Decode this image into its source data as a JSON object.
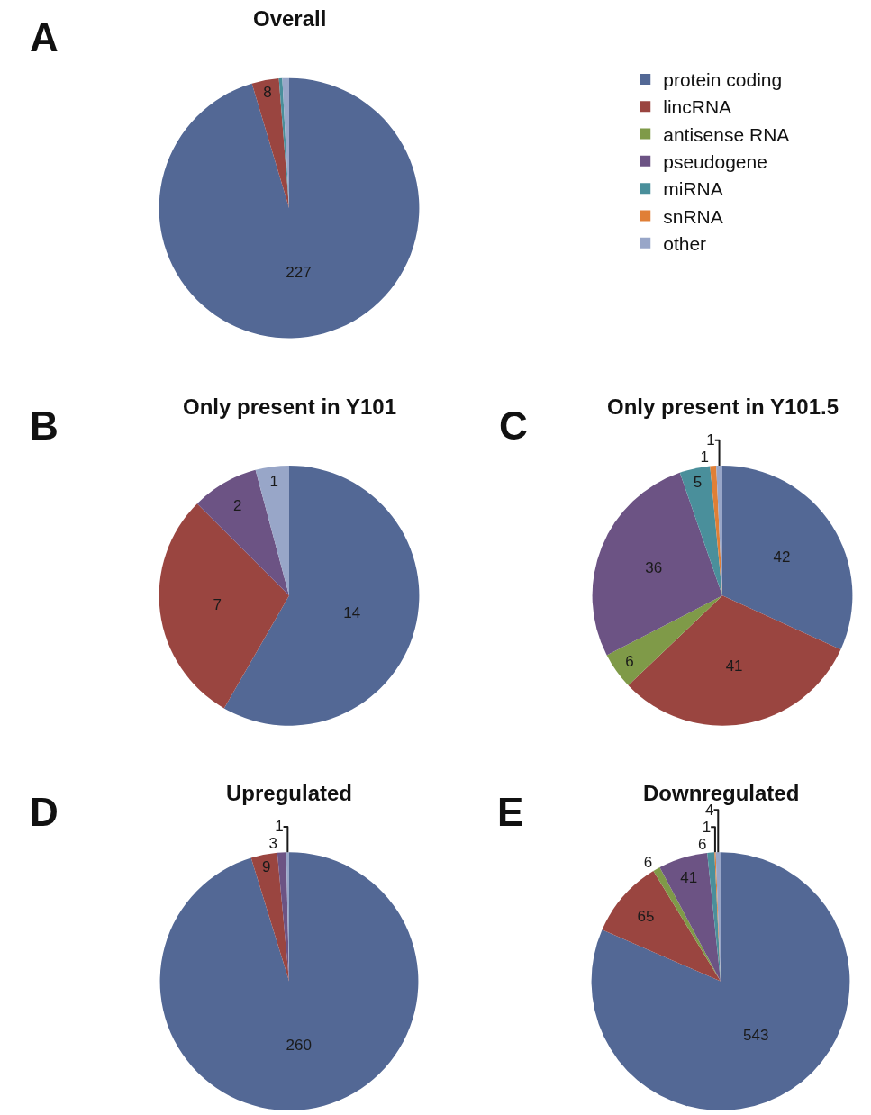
{
  "chart_data": [
    {
      "type": "pie",
      "title": "Overall",
      "annotations": [
        "A"
      ],
      "legend": "right",
      "categories": [
        "protein coding",
        "lincRNA",
        "antisense RNA",
        "pseudogene",
        "miRNA",
        "snRNA",
        "other"
      ],
      "values": [
        227,
        8,
        0,
        0,
        1,
        0,
        2
      ],
      "value_labels": [
        "227",
        "8",
        null,
        null,
        null,
        null,
        null
      ],
      "colors": [
        "#536895",
        "#9a4540",
        "#7f9a48",
        "#6c5384",
        "#4a8f9b",
        "#e07f36",
        "#98a6c8"
      ]
    },
    {
      "type": "pie",
      "title": "Only present in Y101",
      "annotations": [
        "B"
      ],
      "categories": [
        null,
        null,
        null,
        null
      ],
      "values": [
        14,
        7,
        2,
        1
      ],
      "colors": [
        "#536895",
        "#9a4540",
        "#6c5384",
        "#98a6c8"
      ],
      "data_labels": true
    },
    {
      "type": "pie",
      "title": "Only present in Y101.5",
      "annotations": [
        "C"
      ],
      "categories": [
        null,
        null,
        null,
        null,
        null,
        null,
        null
      ],
      "values": [
        42,
        41,
        6,
        36,
        5,
        1,
        1
      ],
      "colors": [
        "#536895",
        "#9a4540",
        "#7f9a48",
        "#6c5384",
        "#4a8f9b",
        "#e07f36",
        "#98a6c8"
      ],
      "data_labels": true
    },
    {
      "type": "pie",
      "title": "Upregulated",
      "annotations": [
        "D"
      ],
      "categories": [
        null,
        null,
        null,
        null
      ],
      "values": [
        260,
        9,
        3,
        1
      ],
      "colors": [
        "#536895",
        "#9a4540",
        "#6c5384",
        "#98a6c8"
      ],
      "data_labels": true
    },
    {
      "type": "pie",
      "title": "Downregulated",
      "annotations": [
        "E"
      ],
      "categories": [
        null,
        null,
        null,
        null,
        null,
        null,
        null
      ],
      "values": [
        543,
        65,
        6,
        41,
        6,
        1,
        4
      ],
      "colors": [
        "#536895",
        "#9a4540",
        "#7f9a48",
        "#6c5384",
        "#4a8f9b",
        "#e07f36",
        "#98a6c8"
      ],
      "data_labels": true
    }
  ]
}
